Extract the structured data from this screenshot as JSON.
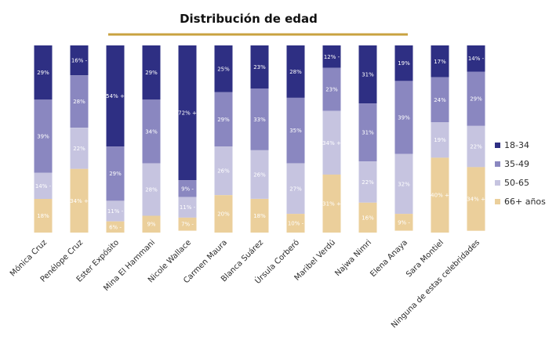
{
  "chart_data": {
    "type": "bar",
    "stacked": true,
    "title": "Distribución de edad",
    "categories": [
      "Mónica Cruz",
      "Penélope Cruz",
      "Ester Expósito",
      "Mina El Hammani",
      "Nicole Wallace",
      "Carmen Maura",
      "Blanca Suárez",
      "Úrsula Corberó",
      "Maribel Verdú",
      "Najwa Nimri",
      "Elena Anaya",
      "Sara Montiel",
      "Ninguna de estas celebridades"
    ],
    "ylim": [
      0,
      100
    ],
    "legend_position": "right",
    "series": [
      {
        "name": "18-34",
        "color": "#2e2f83",
        "values": [
          29,
          16,
          54,
          29,
          72,
          25,
          23,
          28,
          12,
          31,
          19,
          17,
          14
        ]
      },
      {
        "name": "35-49",
        "color": "#8a87c0",
        "values": [
          39,
          28,
          29,
          34,
          9,
          29,
          33,
          35,
          23,
          31,
          39,
          24,
          29
        ]
      },
      {
        "name": "50-65",
        "color": "#c6c4e0",
        "values": [
          14,
          22,
          11,
          28,
          11,
          26,
          26,
          27,
          34,
          22,
          32,
          19,
          22
        ]
      },
      {
        "name": "66+ años",
        "color": "#ebcf9b",
        "values": [
          18,
          34,
          6,
          9,
          7,
          20,
          18,
          10,
          31,
          16,
          9,
          40,
          34
        ]
      }
    ],
    "labels": [
      [
        "29%",
        "16% -",
        "54% +",
        "29%",
        "72% +",
        "25%",
        "23%",
        "28%",
        "12% -",
        "31%",
        "19%",
        "17%",
        "14% -"
      ],
      [
        "39%",
        "28%",
        "29%",
        "34%",
        "9% -",
        "29%",
        "33%",
        "35%",
        "23%",
        "31%",
        "39%",
        "24%",
        "29%"
      ],
      [
        "14% -",
        "22%",
        "11% -",
        "28%",
        "11% -",
        "26%",
        "26%",
        "27%",
        "34% +",
        "22%",
        "32%",
        "19%",
        "22%"
      ],
      [
        "18%",
        "34% +",
        "6% -",
        "9%",
        "7% -",
        "20%",
        "18%",
        "10% -",
        "31% +",
        "16%",
        "9% -",
        "40% +",
        "34% +"
      ]
    ],
    "title_underline_color": "#c9a240"
  }
}
